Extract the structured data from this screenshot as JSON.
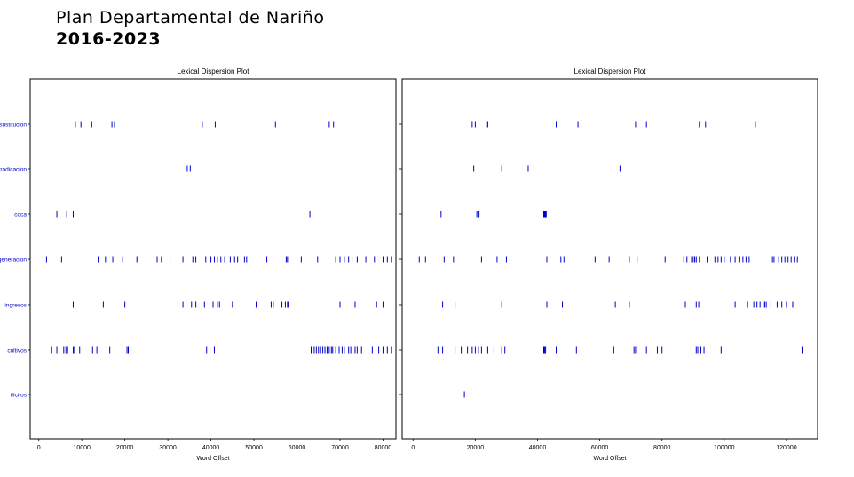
{
  "header": {
    "title": "Plan Departamental de Nariño",
    "subtitle": "2016-2023"
  },
  "colors": {
    "mark": "#0000cc",
    "label": "#0000cc",
    "axis": "#000000"
  },
  "chart_data": [
    {
      "type": "scatter",
      "title": "Lexical Dispersion Plot",
      "xlabel": "Word Offset",
      "ylabel": "",
      "xlim": [
        -2000,
        83000
      ],
      "xticks": [
        0,
        10000,
        20000,
        30000,
        40000,
        50000,
        60000,
        70000,
        80000
      ],
      "categories": [
        "sustitución",
        "erradicacion",
        "coca",
        "generacion",
        "ingresos",
        "cultivos",
        "ilícitos"
      ],
      "series": [
        {
          "term": "sustitución",
          "x": [
            8500,
            9800,
            12300,
            17000,
            17600,
            38000,
            41000,
            55000,
            67500,
            68500
          ]
        },
        {
          "term": "erradicacion",
          "x": [
            34500,
            35200
          ]
        },
        {
          "term": "coca",
          "x": [
            4200,
            6500,
            8000,
            63000
          ]
        },
        {
          "term": "generacion",
          "x": [
            1800,
            5300,
            13800,
            15500,
            17200,
            19500,
            22800,
            27500,
            28500,
            30500,
            33500,
            35800,
            36500,
            38800,
            40000,
            40800,
            41500,
            42300,
            43200,
            44500,
            45500,
            46200,
            47800,
            48300,
            53000,
            57500,
            57800,
            61000,
            64800,
            69000,
            70000,
            71000,
            72000,
            72800,
            74000,
            76000,
            78000,
            80000,
            81000,
            82000
          ]
        },
        {
          "term": "ingresos",
          "x": [
            8000,
            15000,
            20000,
            33500,
            35500,
            36500,
            38500,
            40500,
            41500,
            42000,
            45000,
            50500,
            54000,
            54500,
            56500,
            57300,
            57800,
            58000,
            70000,
            73500,
            78500,
            80000
          ]
        },
        {
          "term": "cultivos",
          "x": [
            3000,
            4200,
            5800,
            6300,
            6700,
            8000,
            8300,
            9500,
            12500,
            13500,
            16500,
            20500,
            20800,
            39000,
            40800,
            63300,
            64000,
            64500,
            65000,
            65500,
            66000,
            66500,
            67000,
            67500,
            68000,
            68300,
            69000,
            69800,
            70500,
            71000,
            72000,
            72500,
            73500,
            74000,
            75000,
            76500,
            77500,
            79000,
            80000,
            81000,
            82000
          ]
        },
        {
          "term": "ilícitos",
          "x": []
        }
      ]
    },
    {
      "type": "scatter",
      "title": "Lexical Dispersion Plot",
      "xlabel": "Word Offset",
      "ylabel": "",
      "xlim": [
        -3500,
        130000
      ],
      "xticks": [
        0,
        20000,
        40000,
        60000,
        80000,
        100000,
        120000
      ],
      "categories": [
        "sustitución",
        "erradicacion",
        "coca",
        "generacion",
        "ingresos",
        "cultivos",
        "ilícitos"
      ],
      "series": [
        {
          "term": "sustitución",
          "x": [
            19000,
            20000,
            23500,
            24000,
            46000,
            53000,
            71500,
            75000,
            92000,
            94000,
            110000
          ]
        },
        {
          "term": "erradicacion",
          "x": [
            19500,
            28500,
            37000,
            66500,
            66800
          ]
        },
        {
          "term": "coca",
          "x": [
            9000,
            20500,
            21200,
            42000,
            42200,
            42400,
            42600,
            42800
          ]
        },
        {
          "term": "generacion",
          "x": [
            2000,
            4000,
            10000,
            13000,
            22000,
            27000,
            30000,
            43000,
            47500,
            48500,
            58500,
            63000,
            69500,
            72000,
            81000,
            87000,
            88000,
            89500,
            90000,
            90500,
            91000,
            92000,
            94500,
            97000,
            98000,
            99000,
            100000,
            102000,
            103500,
            105000,
            106000,
            107000,
            108000,
            115500,
            116000,
            117500,
            118500,
            119500,
            120500,
            121500,
            122500,
            123500
          ]
        },
        {
          "term": "ingresos",
          "x": [
            9500,
            13500,
            28500,
            43000,
            48000,
            65000,
            69500,
            87500,
            91000,
            91800,
            103500,
            107500,
            109500,
            110500,
            111500,
            112500,
            113000,
            113500,
            115000,
            117000,
            118500,
            120000,
            122000
          ]
        },
        {
          "term": "cultivos",
          "x": [
            8000,
            9500,
            13500,
            15500,
            17500,
            19000,
            20000,
            21000,
            22000,
            24000,
            26000,
            28500,
            29500,
            42000,
            42300,
            42600,
            46000,
            52500,
            64500,
            71000,
            71500,
            75000,
            78500,
            80000,
            91000,
            91500,
            92500,
            93500,
            99000,
            125000
          ]
        },
        {
          "term": "ilícitos",
          "x": [
            16500
          ]
        }
      ]
    }
  ]
}
